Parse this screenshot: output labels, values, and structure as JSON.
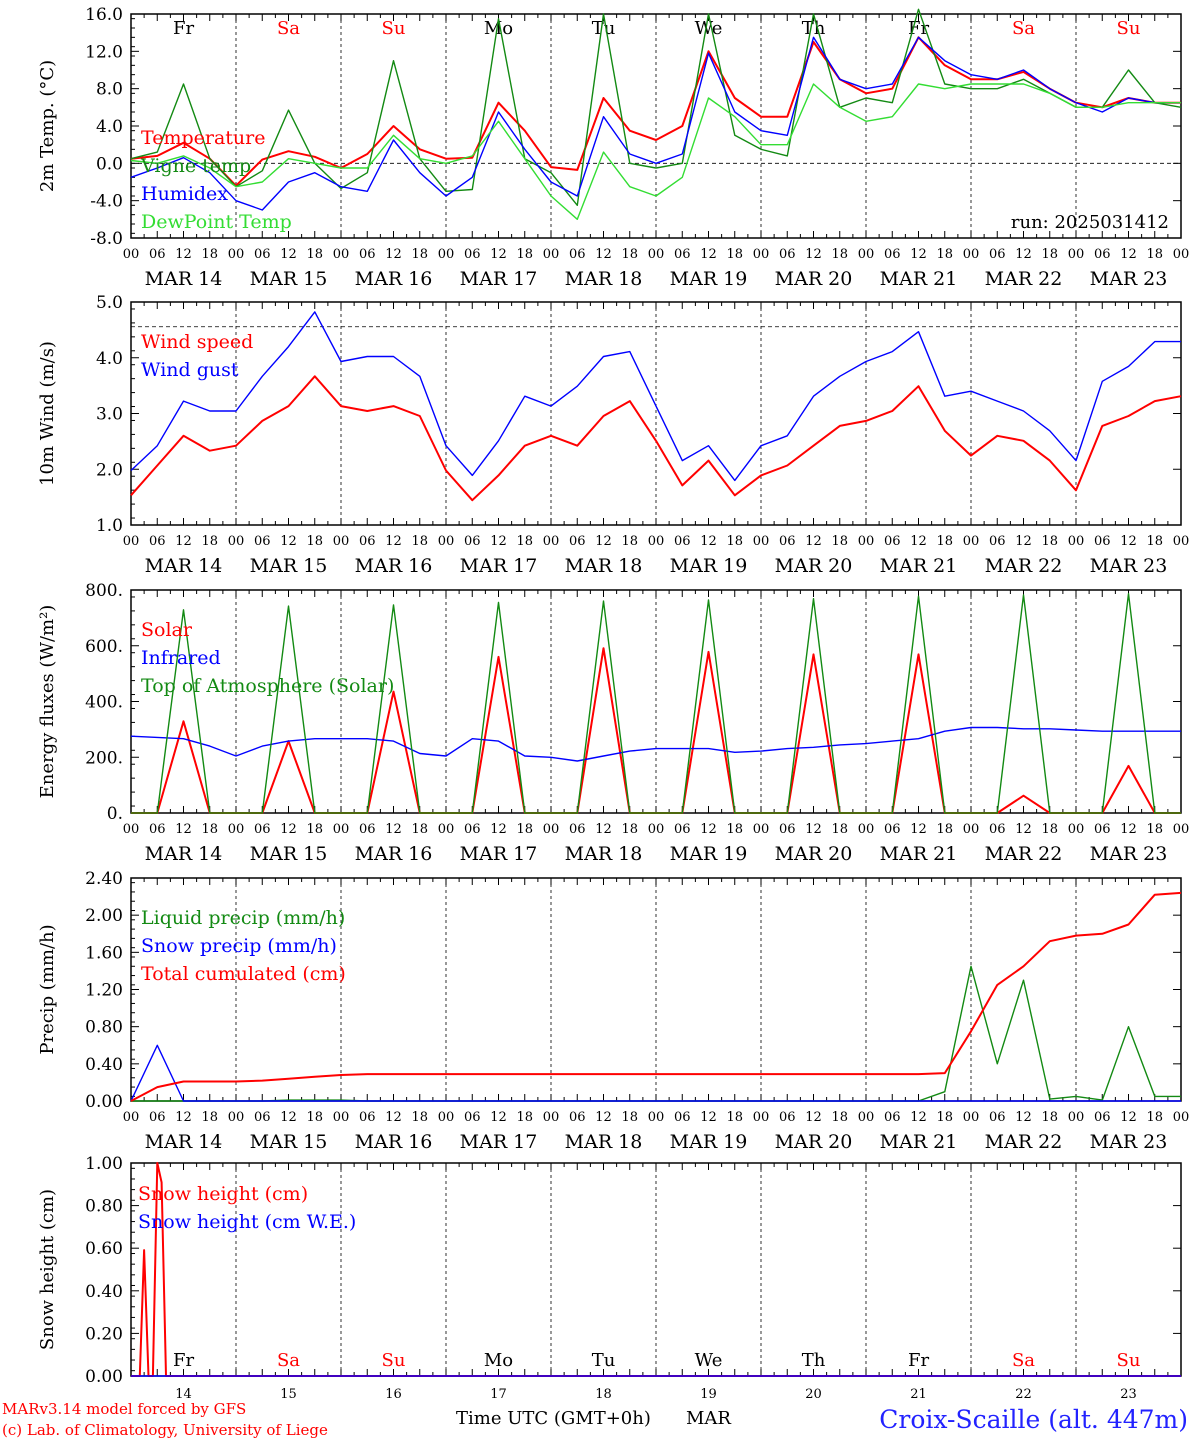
{
  "footer": {
    "model_line": "MARv3.14 model forced by GFS",
    "lab_line": "(c) Lab. of Climatology, University of Liege",
    "time_label": "Time UTC (GMT+0h)",
    "month_label": "MAR",
    "station": "Croix-Scaille (alt. 447m)"
  },
  "colors": {
    "red": "#ff0000",
    "blue": "#0000ff",
    "green": "#138a13",
    "lightgreen": "#33dd33",
    "weekend": "#ff0000",
    "weekday": "#000000"
  },
  "days": {
    "abbrev": [
      "Fr",
      "Sa",
      "Su",
      "Mo",
      "Tu",
      "We",
      "Th",
      "Fr",
      "Sa",
      "Su"
    ],
    "weekend": [
      false,
      true,
      true,
      false,
      false,
      false,
      false,
      false,
      true,
      true
    ],
    "dates": [
      "MAR 14",
      "MAR 15",
      "MAR 16",
      "MAR 17",
      "MAR 18",
      "MAR 19",
      "MAR 20",
      "MAR 21",
      "MAR 22",
      "MAR 23"
    ],
    "day_numbers": [
      "14",
      "15",
      "16",
      "17",
      "18",
      "19",
      "20",
      "21",
      "22",
      "23"
    ],
    "hour_ticks": [
      "00",
      "06",
      "12",
      "18"
    ],
    "end_tick": "00"
  },
  "chart_data": [
    {
      "type": "line",
      "ylabel": "2m Temp. (°C)",
      "ylim": [
        -8,
        16
      ],
      "yticks": [
        "-8.0",
        "-4.0",
        "0.0",
        "4.0",
        "8.0",
        "12.0",
        "16.0"
      ],
      "annotation": "run: 2025031412",
      "show_day_names": true,
      "zero_line": true,
      "x_hours": [
        0,
        6,
        12,
        18,
        24,
        30,
        36,
        42,
        48,
        54,
        60,
        66,
        72,
        78,
        84,
        90,
        96,
        102,
        108,
        114,
        120,
        126,
        132,
        138,
        144,
        150,
        156,
        162,
        168,
        174,
        180,
        186,
        192,
        198,
        204,
        210,
        216,
        222,
        228,
        234,
        240
      ],
      "series": [
        {
          "name": "Temperature",
          "color": "red",
          "values": [
            0.5,
            0.8,
            2.2,
            0.5,
            -2.4,
            0.4,
            1.3,
            0.7,
            -0.5,
            1.0,
            4.0,
            1.5,
            0.5,
            0.6,
            6.5,
            3.5,
            -0.4,
            -0.7,
            7.0,
            3.5,
            2.5,
            4.0,
            12.0,
            7.0,
            5.0,
            5.0,
            13.0,
            9.0,
            7.5,
            8.0,
            13.5,
            10.5,
            9.0,
            9.0,
            9.8,
            8.0,
            6.5,
            6.0,
            7.0,
            6.5,
            6.5
          ]
        },
        {
          "name": "Vigne temp",
          "color": "green",
          "values": [
            0.5,
            1.2,
            8.5,
            0.5,
            -2.5,
            -0.8,
            5.7,
            0.0,
            -2.7,
            -1.0,
            11.0,
            0.5,
            -3.0,
            -2.8,
            15.5,
            0.5,
            -1.0,
            -4.5,
            16.0,
            0.0,
            -0.5,
            0.0,
            16.0,
            3.0,
            1.5,
            0.8,
            16.0,
            6.0,
            7.0,
            6.5,
            16.5,
            8.5,
            8.0,
            8.0,
            9.0,
            7.5,
            6.0,
            6.0,
            10.0,
            6.5,
            6.0
          ]
        },
        {
          "name": "Humidex",
          "color": "blue",
          "values": [
            -1.5,
            -0.5,
            0.6,
            -1.0,
            -4.0,
            -5.0,
            -2.0,
            -1.0,
            -2.5,
            -3.0,
            2.5,
            -1.0,
            -3.5,
            -1.5,
            5.5,
            1.5,
            -2.0,
            -3.5,
            5.0,
            1.0,
            0.0,
            1.0,
            11.8,
            5.5,
            3.5,
            3.0,
            13.5,
            9.0,
            8.0,
            8.5,
            13.5,
            11.0,
            9.5,
            9.0,
            10.0,
            8.0,
            6.5,
            5.5,
            7.0,
            6.5,
            6.5
          ]
        },
        {
          "name": "DewPoint Temp",
          "color": "lightgreen",
          "values": [
            0.3,
            0.0,
            0.8,
            -0.5,
            -2.5,
            -2.0,
            0.5,
            0.0,
            -0.5,
            -0.5,
            3.0,
            0.5,
            0.0,
            0.8,
            4.5,
            0.5,
            -3.5,
            -6.0,
            1.2,
            -2.5,
            -3.5,
            -1.5,
            7.0,
            5.0,
            2.0,
            2.0,
            8.5,
            6.0,
            4.5,
            5.0,
            8.5,
            8.0,
            8.5,
            8.5,
            8.5,
            7.5,
            6.0,
            6.0,
            6.5,
            6.5,
            6.5
          ]
        }
      ]
    },
    {
      "type": "line",
      "ylabel": "10m Wind (m/s)",
      "ylim": [
        1,
        5.5
      ],
      "yticks": [
        "1.0",
        "2.0",
        "3.0",
        "4.0",
        "5.0"
      ],
      "ref_line": 5.0,
      "show_day_names": false,
      "zero_line": false,
      "x_hours": [
        0,
        6,
        12,
        18,
        24,
        30,
        36,
        42,
        48,
        54,
        60,
        66,
        72,
        78,
        84,
        90,
        96,
        102,
        108,
        114,
        120,
        126,
        132,
        138,
        144,
        150,
        156,
        162,
        168,
        174,
        180,
        186,
        192,
        198,
        204,
        210,
        216,
        222,
        228,
        234,
        240
      ],
      "series": [
        {
          "name": "Wind speed",
          "color": "red",
          "values": [
            1.6,
            2.2,
            2.8,
            2.5,
            2.6,
            3.1,
            3.4,
            4.0,
            3.4,
            3.3,
            3.4,
            3.2,
            2.1,
            1.5,
            2.0,
            2.6,
            2.8,
            2.6,
            3.2,
            3.5,
            2.7,
            1.8,
            2.3,
            1.6,
            2.0,
            2.2,
            2.6,
            3.0,
            3.1,
            3.3,
            3.8,
            2.9,
            2.4,
            2.8,
            2.7,
            2.3,
            1.7,
            3.0,
            3.2,
            3.5,
            3.6
          ]
        },
        {
          "name": "Wind gust",
          "color": "blue",
          "values": [
            2.1,
            2.6,
            3.5,
            3.3,
            3.3,
            4.0,
            4.6,
            5.3,
            4.3,
            4.4,
            4.4,
            4.0,
            2.6,
            2.0,
            2.7,
            3.6,
            3.4,
            3.8,
            4.4,
            4.5,
            3.4,
            2.3,
            2.6,
            1.9,
            2.6,
            2.8,
            3.6,
            4.0,
            4.3,
            4.5,
            4.9,
            3.6,
            3.7,
            3.5,
            3.3,
            2.9,
            2.3,
            3.9,
            4.2,
            4.7,
            4.7
          ]
        }
      ]
    },
    {
      "type": "line",
      "ylabel": "Energy fluxes (W/m²)",
      "ylim": [
        0,
        900
      ],
      "yticks": [
        "0.",
        "200.",
        "400.",
        "600.",
        "800."
      ],
      "show_day_names": false,
      "zero_line": false,
      "x_hours": [
        0,
        6,
        12,
        18,
        24,
        30,
        36,
        42,
        48,
        54,
        60,
        66,
        72,
        78,
        84,
        90,
        96,
        102,
        108,
        114,
        120,
        126,
        132,
        138,
        144,
        150,
        156,
        162,
        168,
        174,
        180,
        186,
        192,
        198,
        204,
        210,
        216,
        222,
        228,
        234,
        240
      ],
      "series": [
        {
          "name": "Solar",
          "color": "red",
          "values": [
            0,
            0,
            370,
            0,
            0,
            0,
            290,
            0,
            0,
            0,
            490,
            0,
            0,
            0,
            630,
            0,
            0,
            0,
            665,
            0,
            0,
            0,
            650,
            0,
            0,
            0,
            640,
            0,
            0,
            0,
            640,
            0,
            0,
            0,
            70,
            0,
            0,
            0,
            190,
            0,
            0
          ]
        },
        {
          "name": "Infrared",
          "color": "blue",
          "values": [
            310,
            305,
            300,
            270,
            230,
            270,
            290,
            300,
            300,
            300,
            290,
            240,
            230,
            300,
            290,
            230,
            225,
            210,
            230,
            250,
            260,
            260,
            260,
            245,
            250,
            260,
            265,
            275,
            280,
            290,
            300,
            330,
            345,
            345,
            340,
            340,
            335,
            330,
            330,
            330,
            330
          ]
        },
        {
          "name": "Top of Atmosphere (Solar)",
          "color": "green",
          "values": [
            0,
            0,
            820,
            0,
            0,
            0,
            835,
            0,
            0,
            0,
            840,
            0,
            0,
            0,
            850,
            0,
            0,
            0,
            855,
            0,
            0,
            0,
            860,
            0,
            0,
            0,
            865,
            0,
            0,
            0,
            875,
            0,
            0,
            0,
            880,
            0,
            0,
            0,
            885,
            0,
            0
          ]
        }
      ]
    },
    {
      "type": "line",
      "ylabel": "Precip (mm/h)",
      "ylim": [
        0,
        2.4
      ],
      "yticks": [
        "0.00",
        "0.40",
        "0.80",
        "1.20",
        "1.60",
        "2.00",
        "2.40"
      ],
      "show_day_names": false,
      "zero_line": false,
      "x_hours": [
        0,
        6,
        12,
        18,
        24,
        30,
        36,
        42,
        48,
        54,
        60,
        66,
        72,
        78,
        84,
        90,
        96,
        102,
        108,
        114,
        120,
        126,
        132,
        138,
        144,
        150,
        156,
        162,
        168,
        174,
        180,
        186,
        192,
        198,
        204,
        210,
        216,
        222,
        228,
        234,
        240
      ],
      "series": [
        {
          "name": "Liquid precip (mm/h)",
          "color": "green",
          "values": [
            0,
            0,
            0,
            0,
            0,
            0,
            0.01,
            0.01,
            0.01,
            0,
            0,
            0,
            0,
            0,
            0,
            0,
            0,
            0,
            0,
            0,
            0,
            0,
            0,
            0,
            0,
            0,
            0,
            0,
            0,
            0,
            0,
            0.1,
            1.45,
            0.4,
            1.3,
            0.02,
            0.05,
            0.01,
            0.8,
            0.05,
            0.05
          ]
        },
        {
          "name": "Snow precip (mm/h)",
          "color": "blue",
          "values": [
            0,
            0.6,
            0,
            0,
            0,
            0,
            0,
            0,
            0,
            0,
            0,
            0,
            0,
            0,
            0,
            0,
            0,
            0,
            0,
            0,
            0,
            0,
            0,
            0,
            0,
            0,
            0,
            0,
            0,
            0,
            0,
            0,
            0,
            0,
            0,
            0,
            0,
            0,
            0,
            0,
            0
          ]
        },
        {
          "name": "Total cumulated (cm)",
          "color": "red",
          "values": [
            0,
            0.15,
            0.21,
            0.21,
            0.21,
            0.22,
            0.24,
            0.26,
            0.28,
            0.29,
            0.29,
            0.29,
            0.29,
            0.29,
            0.29,
            0.29,
            0.29,
            0.29,
            0.29,
            0.29,
            0.29,
            0.29,
            0.29,
            0.29,
            0.29,
            0.29,
            0.29,
            0.29,
            0.29,
            0.29,
            0.29,
            0.3,
            0.75,
            1.25,
            1.45,
            1.72,
            1.78,
            1.8,
            1.9,
            2.22,
            2.24
          ]
        }
      ]
    },
    {
      "type": "line",
      "ylabel": "Snow height (cm)",
      "ylim": [
        0,
        1.1
      ],
      "yticks": [
        "0.00",
        "0.20",
        "0.40",
        "0.60",
        "0.80",
        "1.00"
      ],
      "show_day_names": true,
      "zero_line": false,
      "x_hours": [
        0,
        2,
        3,
        4,
        5,
        6,
        7,
        8,
        9,
        240
      ],
      "series": [
        {
          "name": "Snow height (cm)",
          "color": "red",
          "values": [
            0,
            0,
            0.65,
            0,
            0,
            1.1,
            1.0,
            0,
            0,
            0
          ]
        },
        {
          "name": "Snow height (cm W.E.)",
          "color": "blue",
          "values": [
            0,
            0,
            0,
            0,
            0,
            0,
            0,
            0,
            0,
            0
          ]
        }
      ]
    }
  ]
}
